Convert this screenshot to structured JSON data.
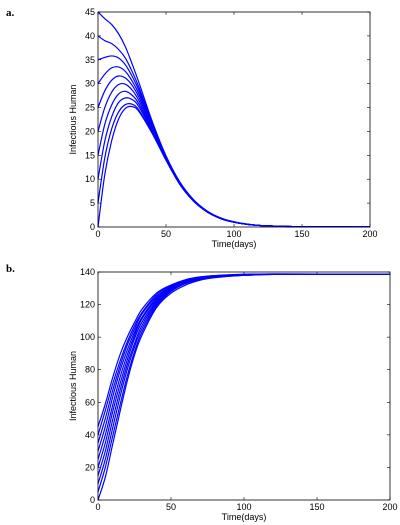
{
  "chart_data": [
    {
      "type": "line",
      "panel_label": "a.",
      "title": "",
      "xlabel": "Time(days)",
      "ylabel": "Infectious Human",
      "xlim": [
        0,
        200
      ],
      "ylim": [
        0,
        45
      ],
      "xticks": [
        0,
        50,
        100,
        150,
        200
      ],
      "yticks": [
        0,
        5,
        10,
        15,
        20,
        25,
        30,
        35,
        40,
        45
      ],
      "grid": false,
      "line_color": "#0000ff",
      "x": [
        0,
        5,
        10,
        15,
        20,
        25,
        30,
        40,
        50,
        60,
        70,
        80,
        90,
        100,
        110,
        120,
        140,
        160,
        180,
        200
      ],
      "series": [
        {
          "values": [
            0,
            11,
            18,
            22.5,
            24.8,
            25.2,
            24.2,
            19.5,
            14,
            9,
            5.5,
            3.2,
            1.8,
            1.0,
            0.55,
            0.3,
            0.1,
            0.04,
            0.02,
            0.01
          ]
        },
        {
          "values": [
            5,
            14.5,
            20.5,
            24,
            25.6,
            25.7,
            24.5,
            19.6,
            14,
            9,
            5.5,
            3.2,
            1.8,
            1.0,
            0.55,
            0.3,
            0.1,
            0.04,
            0.02,
            0.01
          ]
        },
        {
          "values": [
            10,
            18,
            23,
            26,
            27,
            26.7,
            25.2,
            19.9,
            14.1,
            9.1,
            5.5,
            3.2,
            1.8,
            1.0,
            0.55,
            0.3,
            0.1,
            0.04,
            0.02,
            0.01
          ]
        },
        {
          "values": [
            15,
            21.5,
            25.5,
            27.8,
            28.4,
            27.6,
            25.8,
            20.1,
            14.2,
            9.1,
            5.6,
            3.3,
            1.8,
            1.0,
            0.55,
            0.3,
            0.1,
            0.04,
            0.02,
            0.01
          ]
        },
        {
          "values": [
            20,
            25,
            28.2,
            29.8,
            29.9,
            28.7,
            26.5,
            20.4,
            14.3,
            9.2,
            5.6,
            3.3,
            1.8,
            1.0,
            0.55,
            0.3,
            0.1,
            0.04,
            0.02,
            0.01
          ]
        },
        {
          "values": [
            25,
            28.5,
            30.7,
            31.6,
            31.2,
            29.7,
            27.2,
            20.7,
            14.4,
            9.2,
            5.6,
            3.3,
            1.8,
            1.0,
            0.55,
            0.3,
            0.1,
            0.04,
            0.02,
            0.01
          ]
        },
        {
          "values": [
            30,
            32,
            33.3,
            33.5,
            32.6,
            30.6,
            27.9,
            21,
            14.5,
            9.3,
            5.7,
            3.3,
            1.9,
            1.0,
            0.55,
            0.3,
            0.1,
            0.04,
            0.02,
            0.01
          ]
        },
        {
          "values": [
            35,
            35.5,
            35.8,
            35.4,
            34,
            31.6,
            28.6,
            21.3,
            14.6,
            9.3,
            5.7,
            3.3,
            1.9,
            1.0,
            0.55,
            0.3,
            0.1,
            0.04,
            0.02,
            0.01
          ]
        },
        {
          "values": [
            40,
            39,
            38.4,
            37.2,
            35.4,
            32.6,
            29.3,
            21.6,
            14.7,
            9.4,
            5.7,
            3.3,
            1.9,
            1.0,
            0.55,
            0.3,
            0.1,
            0.04,
            0.02,
            0.01
          ]
        },
        {
          "values": [
            45,
            43.6,
            42.4,
            40.5,
            37.8,
            34.2,
            30.3,
            22,
            14.9,
            9.5,
            5.8,
            3.4,
            1.9,
            1.1,
            0.6,
            0.3,
            0.1,
            0.04,
            0.02,
            0.01
          ]
        }
      ]
    },
    {
      "type": "line",
      "panel_label": "b.",
      "title": "",
      "xlabel": "Time(days)",
      "ylabel": "Infectious Human",
      "xlim": [
        0,
        200
      ],
      "ylim": [
        0,
        140
      ],
      "xticks": [
        0,
        50,
        100,
        150,
        200
      ],
      "yticks": [
        0,
        20,
        40,
        60,
        80,
        100,
        120,
        140
      ],
      "grid": false,
      "line_color": "#0000ff",
      "x": [
        0,
        5,
        10,
        15,
        20,
        25,
        30,
        40,
        50,
        60,
        70,
        80,
        100,
        120,
        150,
        200
      ],
      "series": [
        {
          "values": [
            0,
            14,
            34,
            54,
            73,
            89,
            101,
            118,
            127,
            132,
            135,
            136.5,
            138,
            138.5,
            138.5,
            138.5
          ]
        },
        {
          "values": [
            5,
            20,
            39,
            58,
            76,
            91,
            103,
            119,
            128,
            133,
            135.5,
            137,
            138,
            138.5,
            138.5,
            138.5
          ]
        },
        {
          "values": [
            10,
            25,
            44,
            63,
            80,
            94,
            105,
            120,
            128.5,
            133,
            135.5,
            137,
            138,
            138.5,
            138.5,
            138.5
          ]
        },
        {
          "values": [
            15,
            30,
            49,
            67,
            83,
            96,
            107,
            121,
            129,
            133.5,
            136,
            137,
            138.3,
            138.6,
            138.6,
            138.5
          ]
        },
        {
          "values": [
            20,
            35,
            54,
            71,
            86,
            99,
            109,
            122,
            129.5,
            134,
            136,
            137.3,
            138.3,
            138.6,
            138.6,
            138.5
          ]
        },
        {
          "values": [
            25,
            40,
            58,
            75,
            89,
            101,
            111,
            123,
            130,
            134,
            136.3,
            137.4,
            138.4,
            138.7,
            138.7,
            138.5
          ]
        },
        {
          "values": [
            30,
            45,
            63,
            79,
            92,
            103,
            112,
            124,
            130.5,
            134.5,
            136.5,
            137.5,
            138.4,
            138.7,
            138.7,
            138.5
          ]
        },
        {
          "values": [
            35,
            50,
            67,
            82,
            95,
            105,
            114,
            125,
            131,
            134.8,
            136.7,
            137.6,
            138.5,
            138.7,
            138.7,
            138.5
          ]
        },
        {
          "values": [
            40,
            55,
            71,
            85,
            97,
            107,
            115,
            126,
            131.5,
            135,
            136.8,
            137.7,
            138.5,
            138.8,
            138.7,
            138.5
          ]
        },
        {
          "values": [
            45,
            59,
            75,
            89,
            100,
            109,
            117,
            127,
            132,
            135.3,
            137,
            137.8,
            138.6,
            138.8,
            138.7,
            138.5
          ]
        }
      ]
    }
  ]
}
